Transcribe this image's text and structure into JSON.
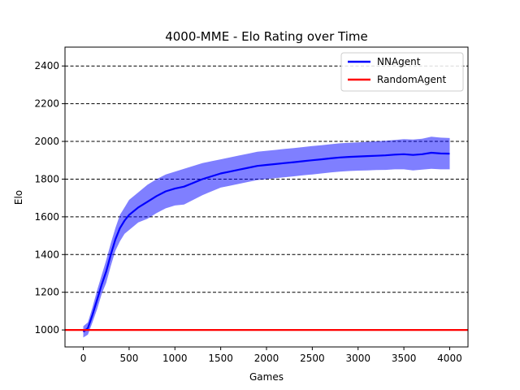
{
  "chart_data": {
    "type": "line",
    "title": "4000-MME - Elo Rating over Time",
    "xlabel": "Games",
    "ylabel": "Elo",
    "xlim": [
      -200,
      4200
    ],
    "ylim": [
      910,
      2500
    ],
    "xticks": [
      0,
      500,
      1000,
      1500,
      2000,
      2500,
      3000,
      3500,
      4000
    ],
    "yticks": [
      1000,
      1200,
      1400,
      1600,
      1800,
      2000,
      2200,
      2400
    ],
    "grid": "horizontal-dashed",
    "legend_position": "top-right",
    "series": [
      {
        "name": "NNAgent",
        "color": "#0000ff",
        "x": [
          0,
          50,
          100,
          150,
          200,
          250,
          300,
          350,
          400,
          450,
          500,
          600,
          700,
          800,
          900,
          1000,
          1100,
          1200,
          1300,
          1400,
          1500,
          1600,
          1700,
          1800,
          1900,
          2000,
          2100,
          2200,
          2300,
          2400,
          2500,
          2600,
          2700,
          2800,
          2900,
          3000,
          3100,
          3200,
          3300,
          3400,
          3500,
          3600,
          3700,
          3800,
          3900,
          4000
        ],
        "values": [
          990,
          1010,
          1080,
          1160,
          1240,
          1310,
          1400,
          1480,
          1540,
          1580,
          1610,
          1650,
          1680,
          1710,
          1735,
          1750,
          1760,
          1780,
          1800,
          1815,
          1830,
          1840,
          1850,
          1860,
          1870,
          1875,
          1880,
          1885,
          1890,
          1895,
          1900,
          1905,
          1910,
          1915,
          1918,
          1920,
          1922,
          1924,
          1926,
          1930,
          1932,
          1928,
          1932,
          1940,
          1936,
          1935
        ],
        "band_upper": [
          1020,
          1040,
          1120,
          1210,
          1290,
          1370,
          1460,
          1540,
          1610,
          1650,
          1690,
          1730,
          1770,
          1800,
          1825,
          1840,
          1855,
          1870,
          1885,
          1895,
          1905,
          1915,
          1925,
          1935,
          1945,
          1950,
          1955,
          1960,
          1965,
          1970,
          1975,
          1980,
          1985,
          1990,
          1993,
          1995,
          1998,
          2000,
          2003,
          2008,
          2012,
          2010,
          2014,
          2025,
          2020,
          2018
        ],
        "band_lower": [
          960,
          975,
          1040,
          1110,
          1190,
          1250,
          1340,
          1420,
          1470,
          1510,
          1530,
          1570,
          1590,
          1620,
          1645,
          1660,
          1665,
          1690,
          1715,
          1735,
          1755,
          1765,
          1775,
          1785,
          1795,
          1800,
          1805,
          1810,
          1815,
          1820,
          1825,
          1830,
          1835,
          1840,
          1843,
          1845,
          1846,
          1848,
          1849,
          1852,
          1852,
          1846,
          1850,
          1855,
          1852,
          1852
        ]
      },
      {
        "name": "RandomAgent",
        "color": "#ff0000",
        "x": [
          -200,
          4200
        ],
        "values": [
          1000,
          1000
        ]
      }
    ]
  }
}
